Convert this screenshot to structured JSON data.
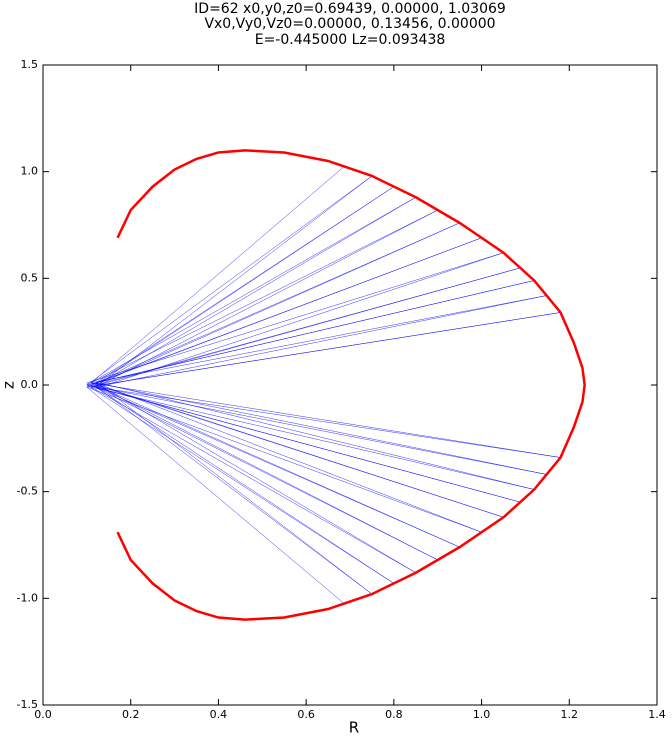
{
  "chart_data": {
    "type": "line",
    "title": [
      "ID=62      x0,y0,z0=0.69439, 0.00000, 1.03069",
      "Vx0,Vy0,Vz0=0.00000, 0.13456, 0.00000",
      "E=-0.445000    Lz=0.093438"
    ],
    "xlabel": "R",
    "ylabel": "z",
    "xlim": [
      0.0,
      1.4
    ],
    "ylim": [
      -1.5,
      1.5
    ],
    "xticks": [
      {
        "value": 0.0,
        "label": "0.0"
      },
      0.2,
      0.4,
      0.6,
      0.8,
      {
        "value": 1.0,
        "label": "1.0"
      },
      1.2,
      1.4
    ],
    "yticks": [
      -1.5,
      {
        "value": -1.0,
        "label": "-1.0"
      },
      -0.5,
      {
        "value": 0.0,
        "label": "0.0"
      },
      0.5,
      {
        "value": 1.0,
        "label": "1.0"
      },
      1.5
    ],
    "grid": false,
    "series": [
      {
        "color": "#0000ff",
        "x": [
          0.69,
          0.11,
          1.18,
          0.12,
          0.75,
          0.1,
          1.15,
          0.12,
          0.8,
          0.11,
          1.12,
          0.13,
          0.85,
          0.1,
          1.09,
          0.12,
          0.9,
          0.11,
          1.05,
          0.12,
          0.95,
          0.1,
          1.0,
          0.12,
          1.0,
          0.11,
          0.95,
          0.13,
          1.05,
          0.1,
          0.9,
          0.12,
          1.09,
          0.11,
          0.85,
          0.12,
          1.12,
          0.1,
          0.8,
          0.12,
          1.15,
          0.11,
          0.75,
          0.13,
          1.18,
          0.1,
          0.69
        ],
        "values": [
          1.03,
          0.01,
          -0.34,
          -0.01,
          0.98,
          0.0,
          -0.42,
          0.01,
          0.93,
          -0.01,
          -0.49,
          0.01,
          0.88,
          0.0,
          -0.55,
          -0.01,
          0.82,
          0.01,
          -0.62,
          0.0,
          0.76,
          -0.01,
          -0.69,
          0.01,
          0.69,
          0.0,
          -0.76,
          -0.01,
          0.62,
          0.01,
          -0.82,
          0.0,
          0.55,
          -0.01,
          -0.88,
          0.01,
          0.49,
          0.0,
          -0.93,
          -0.01,
          0.42,
          0.01,
          -0.98,
          0.0,
          0.34,
          -0.01,
          -1.03
        ]
      },
      {
        "color": "#ff0000",
        "x": [
          0.17,
          0.2,
          0.25,
          0.3,
          0.35,
          0.4,
          0.46,
          0.55,
          0.65,
          0.75,
          0.85,
          0.95,
          1.05,
          1.12,
          1.18,
          1.21,
          1.23,
          1.235,
          1.23,
          1.21,
          1.18,
          1.12,
          1.05,
          0.95,
          0.85,
          0.75,
          0.65,
          0.55,
          0.46,
          0.4,
          0.35,
          0.3,
          0.25,
          0.2,
          0.17
        ],
        "values": [
          0.69,
          0.82,
          0.93,
          1.01,
          1.06,
          1.09,
          1.1,
          1.09,
          1.05,
          0.98,
          0.88,
          0.76,
          0.62,
          0.49,
          0.34,
          0.2,
          0.08,
          0.0,
          -0.08,
          -0.2,
          -0.34,
          -0.49,
          -0.62,
          -0.76,
          -0.88,
          -0.98,
          -1.05,
          -1.09,
          -1.1,
          -1.09,
          -1.06,
          -1.01,
          -0.93,
          -0.82,
          -0.69
        ]
      }
    ]
  }
}
